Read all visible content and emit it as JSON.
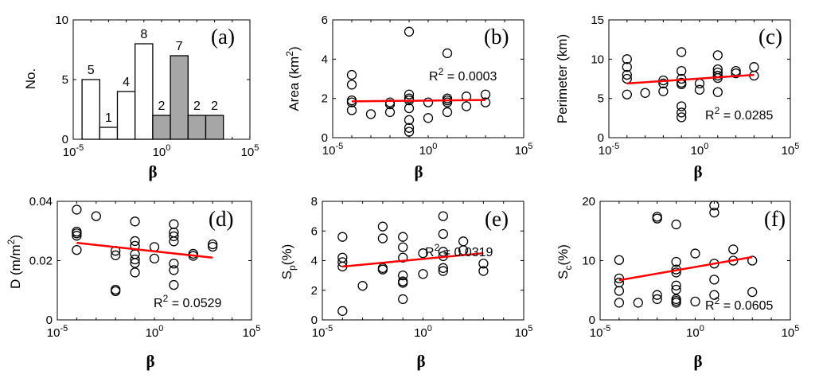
{
  "chart_data": [
    {
      "type": "bar",
      "panel_label": "(a)",
      "ylabel": "No.",
      "xlabel": "β",
      "xlim_exp": [
        -5,
        5
      ],
      "x_tick_labels": [
        "10^-5",
        "10^0",
        "10^5"
      ],
      "ylim": [
        0,
        10
      ],
      "y_ticks": [
        0,
        5,
        10
      ],
      "bin_edges_exp": [
        -4.5,
        -3.5,
        -2.5,
        -1.5,
        -0.5,
        0.5,
        1.5,
        2.5,
        3.5
      ],
      "values": [
        5,
        1,
        4,
        8,
        2,
        7,
        2,
        2
      ],
      "colors": [
        "#ffffff",
        "#ffffff",
        "#ffffff",
        "#ffffff",
        "#a6a6a6",
        "#a6a6a6",
        "#a6a6a6",
        "#a6a6a6"
      ]
    },
    {
      "type": "scatter",
      "panel_label": "(b)",
      "ylabel": "Area (km2)",
      "xlabel": "β",
      "xlim_exp": [
        -5,
        5
      ],
      "x_tick_labels": [
        "10^-5",
        "10^0",
        "10^5"
      ],
      "ylim": [
        0,
        6
      ],
      "y_ticks": [
        0,
        2,
        4,
        6
      ],
      "annotation": "R2 = 0.0003",
      "points": [
        [
          -4,
          3.2
        ],
        [
          -4,
          2.7
        ],
        [
          -4,
          1.9
        ],
        [
          -4,
          1.8
        ],
        [
          -4,
          1.4
        ],
        [
          -3,
          1.2
        ],
        [
          -2,
          1.8
        ],
        [
          -2,
          1.7
        ],
        [
          -2,
          1.3
        ],
        [
          -1,
          5.4
        ],
        [
          -1,
          2.2
        ],
        [
          -1,
          2.0
        ],
        [
          -1,
          1.9
        ],
        [
          -1,
          1.5
        ],
        [
          -1,
          0.9
        ],
        [
          -1,
          0.5
        ],
        [
          -1,
          0.3
        ],
        [
          0,
          1.8
        ],
        [
          0,
          1.0
        ],
        [
          1,
          4.3
        ],
        [
          1,
          2.0
        ],
        [
          1,
          1.9
        ],
        [
          1,
          1.8
        ],
        [
          1,
          1.3
        ],
        [
          2,
          2.1
        ],
        [
          2,
          1.6
        ],
        [
          3,
          2.2
        ],
        [
          3,
          1.8
        ]
      ],
      "fit_line": [
        [
          -4,
          1.85
        ],
        [
          3,
          1.92
        ]
      ]
    },
    {
      "type": "scatter",
      "panel_label": "(c)",
      "ylabel": "Perimeter (km)",
      "xlabel": "β",
      "xlim_exp": [
        -5,
        5
      ],
      "x_tick_labels": [
        "10^-5",
        "10^0",
        "10^5"
      ],
      "ylim": [
        0,
        15
      ],
      "y_ticks": [
        0,
        5,
        10,
        15
      ],
      "annotation": "R2 = 0.0285",
      "points": [
        [
          -4,
          10.0
        ],
        [
          -4,
          9.0
        ],
        [
          -4,
          8.0
        ],
        [
          -4,
          7.5
        ],
        [
          -4,
          5.5
        ],
        [
          -3,
          5.7
        ],
        [
          -2,
          7.3
        ],
        [
          -2,
          6.9
        ],
        [
          -2,
          5.9
        ],
        [
          -1,
          10.9
        ],
        [
          -1,
          8.5
        ],
        [
          -1,
          7.5
        ],
        [
          -1,
          7.0
        ],
        [
          -1,
          6.8
        ],
        [
          -1,
          4.0
        ],
        [
          -1,
          3.2
        ],
        [
          -1,
          2.6
        ],
        [
          0,
          6.9
        ],
        [
          0,
          6.1
        ],
        [
          1,
          10.5
        ],
        [
          1,
          8.7
        ],
        [
          1,
          8.3
        ],
        [
          1,
          7.9
        ],
        [
          1,
          7.6
        ],
        [
          1,
          5.8
        ],
        [
          2,
          8.5
        ],
        [
          2,
          8.2
        ],
        [
          3,
          9.0
        ],
        [
          3,
          7.9
        ]
      ],
      "fit_line": [
        [
          -4,
          6.9
        ],
        [
          3,
          8.0
        ]
      ]
    },
    {
      "type": "scatter",
      "panel_label": "(d)",
      "ylabel": "D (m/m2)",
      "xlabel": "β",
      "xlim_exp": [
        -5,
        5
      ],
      "x_tick_labels": [
        "10^-5",
        "10^0",
        "10^5"
      ],
      "ylim": [
        0,
        0.04
      ],
      "y_ticks": [
        0,
        0.02,
        0.04
      ],
      "y_tick_labels": [
        "0",
        "0.02",
        "0.04"
      ],
      "annotation": "R2 = 0.0529",
      "points": [
        [
          -4,
          0.0372
        ],
        [
          -4,
          0.0298
        ],
        [
          -4,
          0.0292
        ],
        [
          -4,
          0.0284
        ],
        [
          -4,
          0.0236
        ],
        [
          -3,
          0.035
        ],
        [
          -2,
          0.0233
        ],
        [
          -2,
          0.0218
        ],
        [
          -2,
          0.0102
        ],
        [
          -2,
          0.0097
        ],
        [
          -1,
          0.0332
        ],
        [
          -1,
          0.0266
        ],
        [
          -1,
          0.025
        ],
        [
          -1,
          0.0222
        ],
        [
          -1,
          0.0204
        ],
        [
          -1,
          0.0192
        ],
        [
          -1,
          0.016
        ],
        [
          0,
          0.0246
        ],
        [
          0,
          0.0207
        ],
        [
          1,
          0.0323
        ],
        [
          1,
          0.0295
        ],
        [
          1,
          0.0282
        ],
        [
          1,
          0.0265
        ],
        [
          1,
          0.019
        ],
        [
          1,
          0.0168
        ],
        [
          1,
          0.0118
        ],
        [
          2,
          0.0223
        ],
        [
          2,
          0.0216
        ],
        [
          3,
          0.0255
        ],
        [
          3,
          0.0247
        ]
      ],
      "fit_line": [
        [
          -4,
          0.026
        ],
        [
          3,
          0.021
        ]
      ]
    },
    {
      "type": "scatter",
      "panel_label": "(e)",
      "ylabel": "Sp(%)",
      "xlabel": "β",
      "xlim_exp": [
        -5,
        5
      ],
      "x_tick_labels": [
        "10^-5",
        "10^0",
        "10^5"
      ],
      "ylim": [
        0,
        8
      ],
      "y_ticks": [
        0,
        2,
        4,
        6,
        8
      ],
      "annotation": "R2 = 0.0319",
      "points": [
        [
          -4,
          5.6
        ],
        [
          -4,
          4.2
        ],
        [
          -4,
          3.9
        ],
        [
          -4,
          3.6
        ],
        [
          -4,
          0.6
        ],
        [
          -3,
          2.3
        ],
        [
          -2,
          6.3
        ],
        [
          -2,
          5.5
        ],
        [
          -2,
          3.5
        ],
        [
          -2,
          3.4
        ],
        [
          -1,
          5.6
        ],
        [
          -1,
          4.9
        ],
        [
          -1,
          4.2
        ],
        [
          -1,
          3.0
        ],
        [
          -1,
          2.6
        ],
        [
          -1,
          2.5
        ],
        [
          -1,
          1.4
        ],
        [
          0,
          4.5
        ],
        [
          0,
          3.1
        ],
        [
          1,
          7.0
        ],
        [
          1,
          5.8
        ],
        [
          1,
          4.6
        ],
        [
          1,
          4.3
        ],
        [
          1,
          3.5
        ],
        [
          1,
          3.3
        ],
        [
          2,
          5.3
        ],
        [
          2,
          4.7
        ],
        [
          3,
          3.8
        ],
        [
          3,
          3.3
        ]
      ],
      "fit_line": [
        [
          -4,
          3.6
        ],
        [
          3,
          4.5
        ]
      ]
    },
    {
      "type": "scatter",
      "panel_label": "(f)",
      "ylabel": "Sc(%)",
      "xlabel": "β",
      "xlim_exp": [
        -5,
        5
      ],
      "x_tick_labels": [
        "10^-5",
        "10^0",
        "10^5"
      ],
      "ylim": [
        0,
        20
      ],
      "y_ticks": [
        0,
        10,
        20
      ],
      "annotation": "R2 = 0.0605",
      "points": [
        [
          -4,
          10.1
        ],
        [
          -4,
          7.0
        ],
        [
          -4,
          6.3
        ],
        [
          -4,
          4.9
        ],
        [
          -4,
          2.9
        ],
        [
          -3,
          2.9
        ],
        [
          -2,
          17.4
        ],
        [
          -2,
          17.1
        ],
        [
          -2,
          4.2
        ],
        [
          -2,
          3.5
        ],
        [
          -1,
          16.1
        ],
        [
          -1,
          9.8
        ],
        [
          -1,
          8.5
        ],
        [
          -1,
          8.0
        ],
        [
          -1,
          5.8
        ],
        [
          -1,
          5.1
        ],
        [
          -1,
          3.5
        ],
        [
          -1,
          3.2
        ],
        [
          -1,
          2.9
        ],
        [
          0,
          11.2
        ],
        [
          0,
          3.1
        ],
        [
          1,
          19.3
        ],
        [
          1,
          18.1
        ],
        [
          1,
          9.5
        ],
        [
          1,
          6.8
        ],
        [
          1,
          4.2
        ],
        [
          2,
          11.9
        ],
        [
          2,
          10.0
        ],
        [
          3,
          10.0
        ],
        [
          3,
          4.7
        ]
      ],
      "fit_line": [
        [
          -4,
          6.7
        ],
        [
          3,
          10.6
        ]
      ]
    }
  ]
}
